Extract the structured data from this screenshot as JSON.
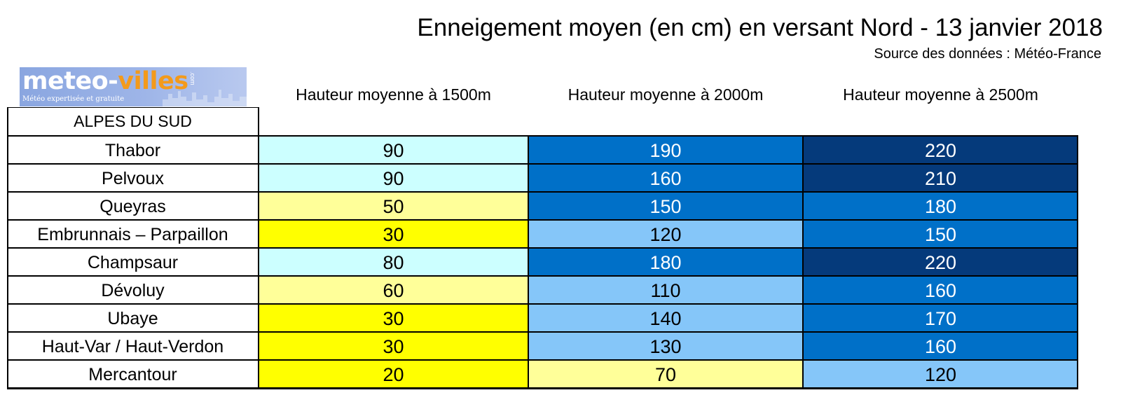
{
  "chart_data": {
    "type": "table",
    "title": "Enneigement moyen (en cm) en versant Nord - 13 janvier 2018",
    "subtitle": "Source des données : Météo-France",
    "region": "ALPES DU SUD",
    "columns": [
      "Hauteur moyenne à 1500m",
      "Hauteur moyenne à 2000m",
      "Hauteur moyenne à 2500m"
    ],
    "rows": [
      {
        "name": "Thabor",
        "values": [
          90,
          190,
          220
        ]
      },
      {
        "name": "Pelvoux",
        "values": [
          90,
          160,
          210
        ]
      },
      {
        "name": "Queyras",
        "values": [
          50,
          150,
          180
        ]
      },
      {
        "name": "Embrunnais – Parpaillon",
        "values": [
          30,
          120,
          150
        ]
      },
      {
        "name": "Champsaur",
        "values": [
          80,
          180,
          220
        ]
      },
      {
        "name": "Dévoluy",
        "values": [
          60,
          110,
          160
        ]
      },
      {
        "name": "Ubaye",
        "values": [
          30,
          140,
          170
        ]
      },
      {
        "name": "Haut-Var / Haut-Verdon",
        "values": [
          30,
          130,
          160
        ]
      },
      {
        "name": "Mercantour",
        "values": [
          20,
          70,
          120
        ]
      }
    ],
    "color_scale": [
      {
        "min": 0,
        "max": 49,
        "bg": "#ffff00",
        "fg": "#000000"
      },
      {
        "min": 50,
        "max": 79,
        "bg": "#ffff99",
        "fg": "#000000"
      },
      {
        "min": 80,
        "max": 99,
        "bg": "#ccffff",
        "fg": "#000000"
      },
      {
        "min": 100,
        "max": 149,
        "bg": "#85c6f9",
        "fg": "#000000"
      },
      {
        "min": 150,
        "max": 199,
        "bg": "#0070c8",
        "fg": "#ffffff"
      },
      {
        "min": 200,
        "max": 9999,
        "bg": "#053a7b",
        "fg": "#ffffff"
      }
    ]
  },
  "logo": {
    "word_a": "meteo-",
    "word_b": "villes",
    "com": ".com",
    "tagline": "Météo expertisée et gratuite"
  }
}
